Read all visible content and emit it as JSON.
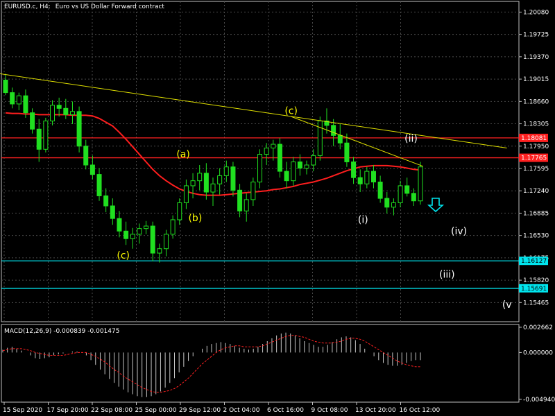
{
  "header": {
    "symbol": "EURUSD.c, H4:",
    "description": "Euro vs US Dollar Forward contract"
  },
  "macd": {
    "label": "MACD(12,26,9) -0.000839 -0.001475",
    "ticks": [
      "0.002662",
      "0.000000",
      "-0.004940"
    ],
    "tick_values": [
      0.002662,
      0.0,
      -0.00494
    ],
    "hist": [
      0.0003,
      0.0005,
      0.0006,
      0.0004,
      0.0002,
      0.0,
      -0.0003,
      -0.0006,
      -0.0007,
      -0.0006,
      -0.0005,
      -0.0003,
      -0.0002,
      -0.0001,
      0.0,
      0.0001,
      0.0001,
      0.0,
      -0.0003,
      -0.0008,
      -0.0013,
      -0.0018,
      -0.0023,
      -0.0028,
      -0.0032,
      -0.0036,
      -0.0039,
      -0.0042,
      -0.0044,
      -0.0046,
      -0.0047,
      -0.0047,
      -0.0046,
      -0.0044,
      -0.0041,
      -0.0037,
      -0.0032,
      -0.0027,
      -0.0021,
      -0.0015,
      -0.0009,
      -0.0004,
      0.0,
      0.0004,
      0.0007,
      0.0009,
      0.001,
      0.0011,
      0.001,
      0.0009,
      0.0007,
      0.0005,
      0.0004,
      0.0003,
      0.0004,
      0.0006,
      0.0009,
      0.0012,
      0.0015,
      0.0018,
      0.002,
      0.0021,
      0.002,
      0.0018,
      0.0015,
      0.0012,
      0.001,
      0.0008,
      0.0006,
      0.0006,
      0.0008,
      0.0011,
      0.0014,
      0.0016,
      0.0017,
      0.0016,
      0.0013,
      0.0009,
      0.0004,
      0.0,
      -0.0004,
      -0.0008,
      -0.0011,
      -0.0013,
      -0.0014,
      -0.0014,
      -0.0013,
      -0.0011,
      -0.0009,
      -0.0008,
      -0.0008
    ],
    "signal": [
      0.0002,
      0.0003,
      0.0004,
      0.0004,
      0.0004,
      0.0003,
      0.0002,
      0.0,
      -0.0001,
      -0.0002,
      -0.0003,
      -0.0003,
      -0.0003,
      -0.0003,
      -0.0002,
      -0.0001,
      0.0,
      0.0,
      0.0,
      -0.0002,
      -0.0004,
      -0.0007,
      -0.001,
      -0.0014,
      -0.0018,
      -0.0021,
      -0.0025,
      -0.0028,
      -0.0031,
      -0.0034,
      -0.0037,
      -0.0039,
      -0.0041,
      -0.0042,
      -0.0042,
      -0.0041,
      -0.004,
      -0.0038,
      -0.0035,
      -0.0031,
      -0.0027,
      -0.0022,
      -0.0017,
      -0.0012,
      -0.0008,
      -0.0004,
      0.0,
      0.0003,
      0.0005,
      0.0006,
      0.0007,
      0.0007,
      0.0006,
      0.0006,
      0.0006,
      0.0006,
      0.0007,
      0.0009,
      0.0011,
      0.0013,
      0.0015,
      0.0017,
      0.0018,
      0.0018,
      0.0017,
      0.0016,
      0.0014,
      0.0012,
      0.0011,
      0.001,
      0.001,
      0.001,
      0.0011,
      0.0012,
      0.0014,
      0.0015,
      0.0015,
      0.0014,
      0.0012,
      0.0009,
      0.0006,
      0.0003,
      0.0,
      -0.0003,
      -0.0006,
      -0.0009,
      -0.0011,
      -0.0013,
      -0.0014,
      -0.0015,
      -0.0015
    ]
  },
  "wave_labels": [
    {
      "text": "(a)",
      "color": "#ffff00",
      "date": "30 Sep 2020",
      "price": 1.1777
    },
    {
      "text": "(b)",
      "color": "#ffff00",
      "date": "1 Oct 2020",
      "price": 1.1676
    },
    {
      "text": "(c)",
      "color": "#ffff00",
      "date": "25 Sep 2020",
      "price": 1.1616
    },
    {
      "text": "(c)",
      "color": "#ffff00",
      "date": "9 Oct 2020",
      "price": 1.1846
    },
    {
      "text": "(ii)",
      "color": "#ffffff",
      "date": "19 Oct 2020",
      "price": 1.1802
    },
    {
      "text": "(i)",
      "color": "#ffffff",
      "date": "15 Oct 2020",
      "price": 1.1673
    },
    {
      "text": "(iv)",
      "color": "#ffffff",
      "date": "23 Oct 2020",
      "price": 1.1655
    },
    {
      "text": "(iii)",
      "color": "#ffffff",
      "date": "22 Oct 2020",
      "price": 1.1586
    },
    {
      "text": "(v",
      "color": "#ffffff",
      "date": "27 Oct 2020",
      "price": 1.1538
    }
  ],
  "chart_data": {
    "type": "candlestick",
    "title": "EURUSD.c, H4: Euro vs US Dollar Forward contract",
    "xlabel": "",
    "ylabel": "",
    "ylim": [
      1.1516,
      1.2025
    ],
    "grid": true,
    "x_tick_labels": [
      "15 Sep 2020",
      "17 Sep 20:00",
      "22 Sep 08:00",
      "25 Sep 00:00",
      "29 Sep 12:00",
      "2 Oct 04:00",
      "6 Oct 16:00",
      "9 Oct 08:00",
      "13 Oct 20:00",
      "16 Oct 12:00"
    ],
    "y_ticks": [
      "1.20080",
      "1.19725",
      "1.19370",
      "1.19015",
      "1.18660",
      "1.18305",
      "1.17950",
      "1.17595",
      "1.17240",
      "1.16885",
      "1.16530",
      "1.16175",
      "1.15820",
      "1.15465"
    ],
    "y_tick_values": [
      1.2008,
      1.19725,
      1.1937,
      1.19015,
      1.1866,
      1.18305,
      1.1795,
      1.17595,
      1.1724,
      1.16885,
      1.1653,
      1.16175,
      1.1582,
      1.15465
    ],
    "horizontal_lines": [
      {
        "price": 1.18081,
        "label": "1.18081",
        "color": "#ff2020"
      },
      {
        "price": 1.17765,
        "label": "1.17765",
        "color": "#ff2020"
      },
      {
        "price": 1.16127,
        "label": "1.16127",
        "color": "#00e5ee"
      },
      {
        "price": 1.15691,
        "label": "1.15691",
        "color": "#00e5ee"
      }
    ],
    "trendlines": [
      {
        "color": "#e0e000",
        "points": [
          [
            "14 Sep 2020",
            1.1912
          ],
          [
            "27 Oct 2020",
            1.1792
          ]
        ]
      },
      {
        "color": "#e0e000",
        "points": [
          [
            "9 Oct 2020",
            1.1842
          ],
          [
            "20 Oct 2020",
            1.1763
          ]
        ]
      }
    ],
    "moving_average": [
      1.1848,
      1.1847,
      1.1847,
      1.1846,
      1.1846,
      1.1845,
      1.1845,
      1.1845,
      1.1845,
      1.1845,
      1.1844,
      1.1844,
      1.1844,
      1.1843,
      1.1839,
      1.1833,
      1.1827,
      1.1817,
      1.1806,
      1.1794,
      1.1782,
      1.177,
      1.1758,
      1.1748,
      1.174,
      1.1733,
      1.1727,
      1.1723,
      1.172,
      1.1718,
      1.1717,
      1.1717,
      1.1717,
      1.1718,
      1.1719,
      1.172,
      1.1721,
      1.1722,
      1.1723,
      1.1724,
      1.1726,
      1.1727,
      1.1729,
      1.1731,
      1.1734,
      1.1736,
      1.1738,
      1.1741,
      1.1744,
      1.1748,
      1.1752,
      1.1756,
      1.1759,
      1.1762,
      1.1763,
      1.1764,
      1.1764,
      1.1764,
      1.1763,
      1.1762,
      1.176,
      1.1758,
      1.1757
    ],
    "candles": [
      [
        1.19,
        1.191,
        1.1876,
        1.188
      ],
      [
        1.188,
        1.1888,
        1.1855,
        1.1862
      ],
      [
        1.1862,
        1.188,
        1.1852,
        1.1875
      ],
      [
        1.1875,
        1.1885,
        1.184,
        1.1848
      ],
      [
        1.1848,
        1.1855,
        1.1815,
        1.1822
      ],
      [
        1.1822,
        1.1838,
        1.177,
        1.179
      ],
      [
        1.179,
        1.184,
        1.1785,
        1.1835
      ],
      [
        1.1835,
        1.1868,
        1.1828,
        1.186
      ],
      [
        1.186,
        1.1872,
        1.1842,
        1.1855
      ],
      [
        1.1855,
        1.187,
        1.1838,
        1.1845
      ],
      [
        1.1845,
        1.1866,
        1.183,
        1.185
      ],
      [
        1.185,
        1.1858,
        1.1785,
        1.1795
      ],
      [
        1.1795,
        1.1805,
        1.1758,
        1.1765
      ],
      [
        1.1765,
        1.178,
        1.1742,
        1.175
      ],
      [
        1.175,
        1.176,
        1.1708,
        1.1716
      ],
      [
        1.1716,
        1.1728,
        1.169,
        1.17
      ],
      [
        1.17,
        1.1712,
        1.167,
        1.168
      ],
      [
        1.168,
        1.1692,
        1.165,
        1.166
      ],
      [
        1.166,
        1.1675,
        1.1638,
        1.1648
      ],
      [
        1.1648,
        1.1665,
        1.1632,
        1.1655
      ],
      [
        1.1655,
        1.1672,
        1.164,
        1.1664
      ],
      [
        1.1664,
        1.1676,
        1.1655,
        1.1668
      ],
      [
        1.1668,
        1.1675,
        1.1612,
        1.1625
      ],
      [
        1.1625,
        1.164,
        1.161,
        1.1632
      ],
      [
        1.1632,
        1.1662,
        1.162,
        1.1655
      ],
      [
        1.1655,
        1.1685,
        1.1648,
        1.1678
      ],
      [
        1.1678,
        1.1712,
        1.167,
        1.1705
      ],
      [
        1.1705,
        1.1742,
        1.1695,
        1.1732
      ],
      [
        1.1732,
        1.1752,
        1.1712,
        1.174
      ],
      [
        1.174,
        1.1765,
        1.1725,
        1.1752
      ],
      [
        1.1752,
        1.1768,
        1.171,
        1.1722
      ],
      [
        1.1722,
        1.1745,
        1.17,
        1.1735
      ],
      [
        1.1735,
        1.176,
        1.1718,
        1.1748
      ],
      [
        1.1748,
        1.1772,
        1.1738,
        1.1762
      ],
      [
        1.1762,
        1.177,
        1.1715,
        1.1725
      ],
      [
        1.1725,
        1.1735,
        1.1682,
        1.1692
      ],
      [
        1.1692,
        1.172,
        1.1675,
        1.171
      ],
      [
        1.171,
        1.1745,
        1.17,
        1.1738
      ],
      [
        1.1738,
        1.179,
        1.1728,
        1.1782
      ],
      [
        1.1782,
        1.18,
        1.1765,
        1.1792
      ],
      [
        1.1792,
        1.1805,
        1.1772,
        1.1798
      ],
      [
        1.1798,
        1.1808,
        1.1745,
        1.1755
      ],
      [
        1.1755,
        1.177,
        1.1728,
        1.174
      ],
      [
        1.174,
        1.1778,
        1.1732,
        1.177
      ],
      [
        1.177,
        1.1782,
        1.1748,
        1.176
      ],
      [
        1.176,
        1.1772,
        1.175,
        1.1765
      ],
      [
        1.1765,
        1.179,
        1.1755,
        1.178
      ],
      [
        1.178,
        1.1842,
        1.1772,
        1.1835
      ],
      [
        1.1835,
        1.1855,
        1.1815,
        1.1828
      ],
      [
        1.1828,
        1.1838,
        1.1795,
        1.1812
      ],
      [
        1.1812,
        1.183,
        1.179,
        1.18
      ],
      [
        1.18,
        1.1815,
        1.1762,
        1.177
      ],
      [
        1.177,
        1.1778,
        1.1735,
        1.1745
      ],
      [
        1.1745,
        1.1758,
        1.1722,
        1.1735
      ],
      [
        1.1735,
        1.1762,
        1.1728,
        1.1755
      ],
      [
        1.1755,
        1.1765,
        1.1728,
        1.1738
      ],
      [
        1.1738,
        1.1748,
        1.1705,
        1.1712
      ],
      [
        1.1712,
        1.1722,
        1.1688,
        1.1698
      ],
      [
        1.1698,
        1.1712,
        1.1685,
        1.1705
      ],
      [
        1.1705,
        1.174,
        1.1698,
        1.1732
      ],
      [
        1.1732,
        1.1745,
        1.1715,
        1.172
      ],
      [
        1.172,
        1.1728,
        1.17,
        1.1708
      ],
      [
        1.1708,
        1.177,
        1.1702,
        1.1762
      ]
    ]
  }
}
